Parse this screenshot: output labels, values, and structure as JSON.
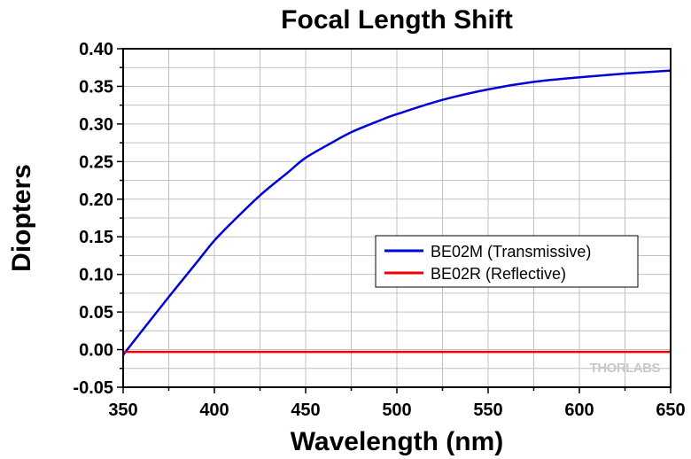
{
  "chart_data": {
    "type": "line",
    "title": "Focal Length Shift",
    "xlabel": "Wavelength (nm)",
    "ylabel": "Diopters",
    "xlim": [
      350,
      650
    ],
    "ylim": [
      -0.05,
      0.4
    ],
    "x_ticks": [
      350,
      400,
      450,
      500,
      550,
      600,
      650
    ],
    "x_tick_labels": [
      "350",
      "400",
      "450",
      "500",
      "550",
      "600",
      "650"
    ],
    "y_ticks": [
      -0.05,
      0.0,
      0.05,
      0.1,
      0.15,
      0.2,
      0.25,
      0.3,
      0.35,
      0.4
    ],
    "y_tick_labels": [
      "-0.05",
      "0.00",
      "0.05",
      "0.10",
      "0.15",
      "0.20",
      "0.25",
      "0.30",
      "0.35",
      "0.40"
    ],
    "grid": true,
    "legend_position": "right",
    "series": [
      {
        "name": "BE02M (Transmissive)",
        "color": "#0000dd",
        "x": [
          350,
          360,
          375,
          390,
          400,
          410,
          425,
          440,
          450,
          465,
          475,
          490,
          500,
          525,
          550,
          575,
          600,
          625,
          650
        ],
        "y": [
          -0.007,
          0.024,
          0.07,
          0.115,
          0.145,
          0.17,
          0.205,
          0.235,
          0.255,
          0.276,
          0.289,
          0.304,
          0.313,
          0.332,
          0.346,
          0.356,
          0.362,
          0.367,
          0.371
        ]
      },
      {
        "name": "BE02R (Reflective)",
        "color": "#ee0000",
        "x": [
          350,
          650
        ],
        "y": [
          -0.003,
          -0.003
        ]
      }
    ]
  },
  "watermark": {
    "text": "THORLABS"
  }
}
